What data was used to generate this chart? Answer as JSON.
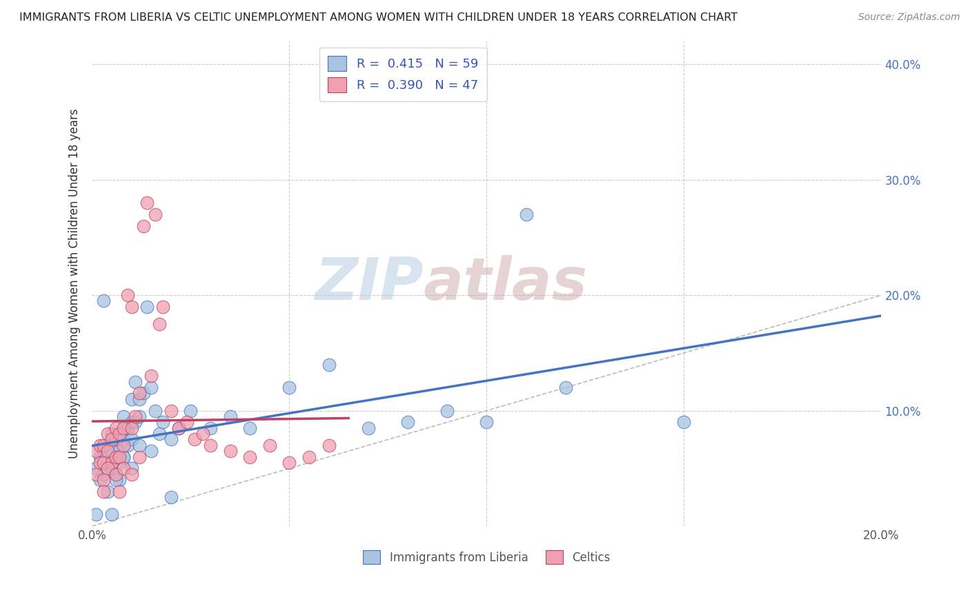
{
  "title": "IMMIGRANTS FROM LIBERIA VS CELTIC UNEMPLOYMENT AMONG WOMEN WITH CHILDREN UNDER 18 YEARS CORRELATION CHART",
  "source": "Source: ZipAtlas.com",
  "ylabel": "Unemployment Among Women with Children Under 18 years",
  "x_label_bottom_center": "Immigrants from Liberia",
  "legend_entry1": "R =  0.415   N = 59",
  "legend_entry2": "R =  0.390   N = 47",
  "legend_label1": "Immigrants from Liberia",
  "legend_label2": "Celtics",
  "R1": 0.415,
  "N1": 59,
  "R2": 0.39,
  "N2": 47,
  "x_min": 0.0,
  "x_max": 0.2,
  "y_min": 0.0,
  "y_max": 0.42,
  "color_blue_face": "#a8c4e0",
  "color_pink_face": "#f0a0b0",
  "color_blue_edge": "#4472c4",
  "color_pink_edge": "#c04060",
  "color_blue_line": "#4472c4",
  "color_pink_line": "#c04060",
  "color_diagonal": "#bbbbbb",
  "watermark_zip": "ZIP",
  "watermark_atlas": "atlas",
  "blue_scatter_x": [
    0.001,
    0.002,
    0.002,
    0.003,
    0.003,
    0.004,
    0.004,
    0.004,
    0.005,
    0.005,
    0.005,
    0.006,
    0.006,
    0.006,
    0.007,
    0.007,
    0.007,
    0.008,
    0.008,
    0.008,
    0.009,
    0.009,
    0.01,
    0.01,
    0.01,
    0.011,
    0.011,
    0.012,
    0.012,
    0.013,
    0.014,
    0.015,
    0.016,
    0.017,
    0.018,
    0.02,
    0.022,
    0.025,
    0.03,
    0.035,
    0.04,
    0.05,
    0.06,
    0.07,
    0.08,
    0.09,
    0.1,
    0.11,
    0.12,
    0.15,
    0.006,
    0.008,
    0.01,
    0.012,
    0.015,
    0.02,
    0.003,
    0.005,
    0.001
  ],
  "blue_scatter_y": [
    0.05,
    0.04,
    0.06,
    0.045,
    0.065,
    0.03,
    0.055,
    0.07,
    0.05,
    0.065,
    0.08,
    0.045,
    0.06,
    0.075,
    0.055,
    0.065,
    0.04,
    0.075,
    0.095,
    0.06,
    0.07,
    0.085,
    0.075,
    0.09,
    0.11,
    0.125,
    0.09,
    0.095,
    0.11,
    0.115,
    0.19,
    0.12,
    0.1,
    0.08,
    0.09,
    0.075,
    0.085,
    0.1,
    0.085,
    0.095,
    0.085,
    0.12,
    0.14,
    0.085,
    0.09,
    0.1,
    0.09,
    0.27,
    0.12,
    0.09,
    0.04,
    0.06,
    0.05,
    0.07,
    0.065,
    0.025,
    0.195,
    0.01,
    0.01
  ],
  "pink_scatter_x": [
    0.001,
    0.001,
    0.002,
    0.002,
    0.003,
    0.003,
    0.003,
    0.004,
    0.004,
    0.005,
    0.005,
    0.006,
    0.006,
    0.007,
    0.007,
    0.008,
    0.008,
    0.009,
    0.01,
    0.01,
    0.011,
    0.012,
    0.013,
    0.014,
    0.015,
    0.016,
    0.017,
    0.018,
    0.02,
    0.022,
    0.024,
    0.026,
    0.028,
    0.03,
    0.035,
    0.04,
    0.045,
    0.05,
    0.055,
    0.06,
    0.004,
    0.006,
    0.008,
    0.01,
    0.012,
    0.003,
    0.007
  ],
  "pink_scatter_y": [
    0.045,
    0.065,
    0.055,
    0.07,
    0.055,
    0.07,
    0.04,
    0.065,
    0.08,
    0.055,
    0.075,
    0.06,
    0.085,
    0.06,
    0.08,
    0.07,
    0.085,
    0.2,
    0.085,
    0.19,
    0.095,
    0.115,
    0.26,
    0.28,
    0.13,
    0.27,
    0.175,
    0.19,
    0.1,
    0.085,
    0.09,
    0.075,
    0.08,
    0.07,
    0.065,
    0.06,
    0.07,
    0.055,
    0.06,
    0.07,
    0.05,
    0.045,
    0.05,
    0.045,
    0.06,
    0.03,
    0.03
  ]
}
